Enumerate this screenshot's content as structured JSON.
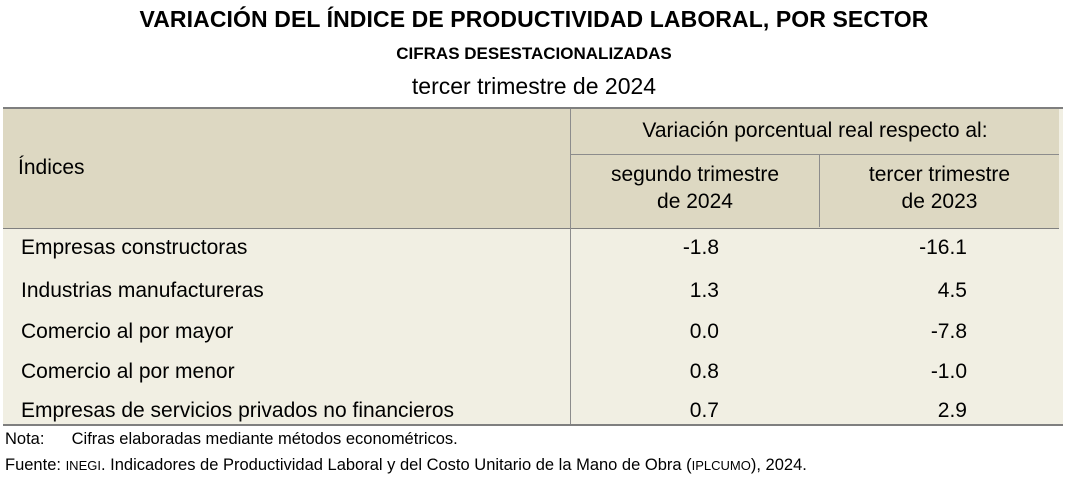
{
  "title": "VARIACIÓN DEL ÍNDICE DE PRODUCTIVIDAD LABORAL, POR SECTOR",
  "subtitle": "CIFRAS DESESTACIONALIZADAS",
  "period": "tercer trimestre de 2024",
  "table": {
    "row_header": "Índices",
    "group_header": "Variación porcentual real respecto al:",
    "columns": [
      {
        "line1": "segundo trimestre",
        "line2": "de 2024"
      },
      {
        "line1": "tercer trimestre",
        "line2": "de 2023"
      }
    ],
    "rows": [
      {
        "label": "Empresas constructoras",
        "v1": "-1.8",
        "v2": "-16.1"
      },
      {
        "label": "Industrias manufactureras",
        "v1": "1.3",
        "v2": "4.5"
      },
      {
        "label": "Comercio al por mayor",
        "v1": "0.0",
        "v2": "-7.8"
      },
      {
        "label": "Comercio al por menor",
        "v1": "0.8",
        "v2": "-1.0"
      },
      {
        "label": "Empresas de servicios privados no financieros",
        "v1": "0.7",
        "v2": "2.9"
      }
    ]
  },
  "notes": {
    "nota_label": "Nota:",
    "nota_text": "Cifras elaboradas mediante métodos econométricos.",
    "fuente_label": "Fuente:",
    "fuente_org": "INEGI",
    "fuente_text": ". Indicadores de Productividad Laboral y del Costo Unitario de la Mano de Obra (",
    "fuente_acronym": "IPLCUMO",
    "fuente_end": "), 2024."
  }
}
